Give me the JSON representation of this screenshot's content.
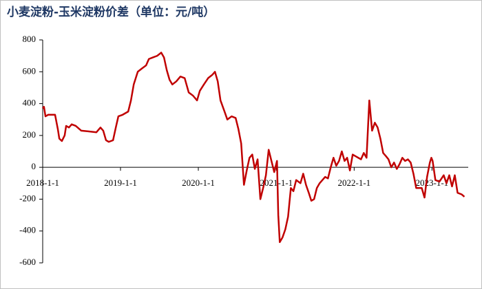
{
  "chart_data": {
    "type": "line",
    "title": "小麦淀粉-玉米淀粉价差（单位：元/吨）",
    "x": [
      "2018-1-1",
      "2018-1-7",
      "2018-1-14",
      "2018-1-27",
      "2018-2-28",
      "2018-3-13",
      "2018-3-20",
      "2018-4-1",
      "2018-4-14",
      "2018-4-21",
      "2018-5-4",
      "2018-5-17",
      "2018-6-5",
      "2018-7-1",
      "2018-8-9",
      "2018-9-10",
      "2018-9-29",
      "2018-10-12",
      "2018-10-25",
      "2018-11-7",
      "2018-11-27",
      "2018-12-10",
      "2018-12-22",
      "2019-1-11",
      "2019-2-6",
      "2019-2-19",
      "2019-3-4",
      "2019-3-23",
      "2019-4-11",
      "2019-5-1",
      "2019-5-14",
      "2019-6-2",
      "2019-6-22",
      "2019-7-11",
      "2019-7-24",
      "2019-8-6",
      "2019-8-19",
      "2019-9-1",
      "2019-9-20",
      "2019-10-9",
      "2019-10-29",
      "2019-11-17",
      "2019-12-7",
      "2019-12-26",
      "2020-1-8",
      "2020-1-27",
      "2020-2-16",
      "2020-3-6",
      "2020-3-19",
      "2020-4-1",
      "2020-4-14",
      "2020-5-3",
      "2020-5-16",
      "2020-6-5",
      "2020-6-24",
      "2020-7-7",
      "2020-7-20",
      "2020-8-2",
      "2020-8-15",
      "2020-8-28",
      "2020-9-10",
      "2020-9-22",
      "2020-10-5",
      "2020-10-18",
      "2020-10-31",
      "2020-11-13",
      "2020-11-26",
      "2020-12-9",
      "2020-12-22",
      "2021-1-4",
      "2021-1-10",
      "2021-1-17",
      "2021-1-30",
      "2021-2-12",
      "2021-2-25",
      "2021-3-10",
      "2021-3-22",
      "2021-4-4",
      "2021-4-24",
      "2021-5-7",
      "2021-5-20",
      "2021-6-2",
      "2021-6-14",
      "2021-6-27",
      "2021-7-10",
      "2021-7-23",
      "2021-8-5",
      "2021-8-18",
      "2021-8-31",
      "2021-9-13",
      "2021-9-26",
      "2021-10-9",
      "2021-10-22",
      "2021-11-4",
      "2021-11-17",
      "2021-11-29",
      "2021-12-12",
      "2021-12-25",
      "2022-1-7",
      "2022-1-20",
      "2022-2-2",
      "2022-2-15",
      "2022-2-28",
      "2022-3-13",
      "2022-3-26",
      "2022-4-8",
      "2022-4-21",
      "2022-5-4",
      "2022-5-17",
      "2022-5-30",
      "2022-6-11",
      "2022-6-24",
      "2022-7-7",
      "2022-7-20",
      "2022-8-2",
      "2022-8-15",
      "2022-8-28",
      "2022-9-10",
      "2022-9-23",
      "2022-10-6",
      "2022-10-19",
      "2022-11-1",
      "2022-11-14",
      "2022-11-27",
      "2022-12-9",
      "2022-12-22",
      "2022-12-29",
      "2023-1-4",
      "2023-1-17",
      "2023-2-5",
      "2023-2-25",
      "2023-3-10",
      "2023-3-23",
      "2023-4-5",
      "2023-4-18",
      "2023-5-1",
      "2023-5-20",
      "2023-6-2"
    ],
    "series": [
      {
        "color": "#c00000",
        "values": [
          370,
          380,
          320,
          330,
          330,
          240,
          180,
          165,
          200,
          260,
          250,
          270,
          260,
          230,
          225,
          220,
          250,
          230,
          170,
          160,
          170,
          250,
          320,
          330,
          350,
          420,
          520,
          600,
          620,
          640,
          680,
          690,
          700,
          720,
          690,
          610,
          550,
          520,
          540,
          570,
          560,
          470,
          450,
          420,
          480,
          520,
          560,
          580,
          600,
          540,
          420,
          350,
          300,
          320,
          310,
          240,
          150,
          -110,
          -20,
          60,
          80,
          -10,
          50,
          -200,
          -130,
          -50,
          110,
          40,
          -30,
          40,
          -300,
          -470,
          -440,
          -390,
          -310,
          -130,
          -150,
          -80,
          -100,
          -40,
          -110,
          -160,
          -210,
          -200,
          -130,
          -100,
          -80,
          -60,
          -70,
          0,
          60,
          10,
          40,
          100,
          40,
          60,
          -20,
          80,
          70,
          60,
          50,
          90,
          60,
          420,
          230,
          280,
          250,
          180,
          90,
          70,
          50,
          0,
          30,
          -10,
          20,
          60,
          40,
          50,
          30,
          -40,
          -130,
          -130,
          -130,
          -190,
          -60,
          30,
          60,
          40,
          -80,
          -90,
          -50,
          -100,
          -50,
          -120,
          -50,
          -160,
          -170,
          -185
        ]
      }
    ],
    "xlim": [
      "2018-1-1",
      "2023-6-20"
    ],
    "xticks": [
      "2018-1-1",
      "2019-1-1",
      "2020-1-1",
      "2021-1-1",
      "2022-1-1",
      "2023-1-1"
    ],
    "ylim": [
      -600,
      800
    ],
    "yticks": [
      -600,
      -400,
      -200,
      0,
      200,
      400,
      600,
      800
    ]
  }
}
